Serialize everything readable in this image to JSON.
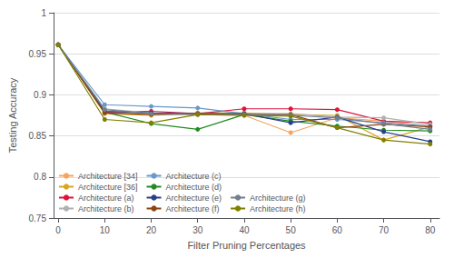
{
  "chart_data": {
    "type": "line",
    "x": [
      0,
      10,
      20,
      30,
      40,
      50,
      60,
      70,
      80
    ],
    "series": [
      {
        "name": "Architecture [34]",
        "color": "#F4A460",
        "values": [
          0.961,
          0.878,
          0.877,
          0.876,
          0.875,
          0.854,
          0.872,
          0.868,
          0.862
        ]
      },
      {
        "name": "Architecture [36]",
        "color": "#DAA520",
        "values": [
          0.961,
          0.877,
          0.875,
          0.878,
          0.878,
          0.876,
          0.875,
          0.845,
          0.861
        ]
      },
      {
        "name": "Architecture (a)",
        "color": "#DC143C",
        "values": [
          0.961,
          0.879,
          0.88,
          0.877,
          0.883,
          0.883,
          0.882,
          0.868,
          0.866
        ]
      },
      {
        "name": "Architecture (b)",
        "color": "#B0B0B0",
        "values": [
          0.961,
          0.883,
          0.878,
          0.877,
          0.877,
          0.877,
          0.873,
          0.872,
          0.864
        ]
      },
      {
        "name": "Architecture (c)",
        "color": "#6699CC",
        "values": [
          0.961,
          0.888,
          0.886,
          0.884,
          0.877,
          0.87,
          0.87,
          0.866,
          0.862
        ]
      },
      {
        "name": "Architecture (d)",
        "color": "#228B22",
        "values": [
          0.961,
          0.879,
          0.865,
          0.858,
          0.876,
          0.868,
          0.862,
          0.857,
          0.856
        ]
      },
      {
        "name": "Architecture (e)",
        "color": "#2B3E8C",
        "values": [
          0.961,
          0.88,
          0.878,
          0.877,
          0.877,
          0.866,
          0.873,
          0.855,
          0.843
        ]
      },
      {
        "name": "Architecture (f)",
        "color": "#8B4513",
        "values": [
          0.961,
          0.878,
          0.876,
          0.877,
          0.876,
          0.876,
          0.86,
          0.864,
          0.861
        ]
      },
      {
        "name": "Architecture (g)",
        "color": "#708090",
        "values": [
          0.961,
          0.882,
          0.877,
          0.876,
          0.876,
          0.875,
          0.872,
          0.865,
          0.858
        ]
      },
      {
        "name": "Architecture (h)",
        "color": "#808000",
        "values": [
          0.961,
          0.87,
          0.866,
          0.876,
          0.875,
          0.874,
          0.86,
          0.845,
          0.84
        ]
      }
    ],
    "xlabel": "Filter Pruning Percentages",
    "ylabel": "Testing Accuracy",
    "xlim": [
      -1,
      82
    ],
    "ylim": [
      0.75,
      1
    ],
    "xticks": [
      0,
      10,
      20,
      30,
      40,
      50,
      60,
      70,
      80
    ],
    "yticks": [
      0.75,
      0.8,
      0.85,
      0.9,
      0.95,
      1
    ],
    "grid": true,
    "legend": "lower left",
    "marker": "circle"
  }
}
